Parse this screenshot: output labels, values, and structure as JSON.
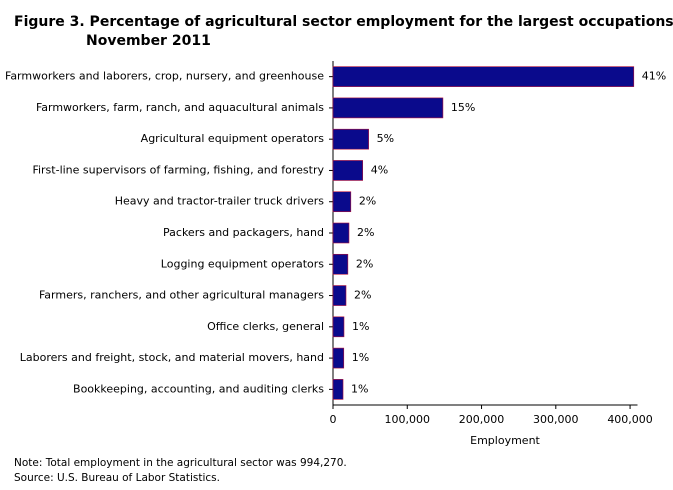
{
  "chart_data": {
    "type": "hbar",
    "title": [
      "Figure 3. Percentage of agricultural sector employment for the largest occupations,",
      "November 2011"
    ],
    "categories": [
      "Farmworkers and laborers, crop, nursery, and greenhouse",
      "Farmworkers, farm, ranch, and aquacultural animals",
      "Agricultural equipment operators",
      "First-line supervisors of farming, fishing, and forestry",
      "Heavy and tractor-trailer truck drivers",
      "Packers and packagers, hand",
      "Logging equipment operators",
      "Farmers, ranchers, and other agricultural managers",
      "Office clerks, general",
      "Laborers and freight, stock, and material movers, hand",
      "Bookkeeping, accounting, and auditing clerks"
    ],
    "values": [
      405000,
      148000,
      48000,
      40000,
      24000,
      21500,
      20000,
      17500,
      14800,
      14500,
      13500
    ],
    "color": "#0a0a8c",
    "percent": {
      "values": [
        41,
        15,
        5,
        4,
        2,
        2,
        2,
        2,
        1,
        1,
        1
      ],
      "value_labels": [
        "41%",
        "15%",
        "5%",
        "4%",
        "2%",
        "2%",
        "2%",
        "2%",
        "1%",
        "1%",
        "1%"
      ]
    },
    "xlabel": "Employment",
    "xlim": [
      0,
      410000
    ],
    "xticks": [
      0,
      {
        "value": 100000,
        "label": "100,000"
      },
      {
        "value": 200000,
        "label": "200,000"
      },
      {
        "value": 300000,
        "label": "300,000"
      },
      {
        "value": 400000,
        "label": "400,000"
      }
    ],
    "notes": [
      "Note: Total employment in the agricultural sector was 994,270.",
      "Source: U.S. Bureau of Labor Statistics."
    ]
  }
}
